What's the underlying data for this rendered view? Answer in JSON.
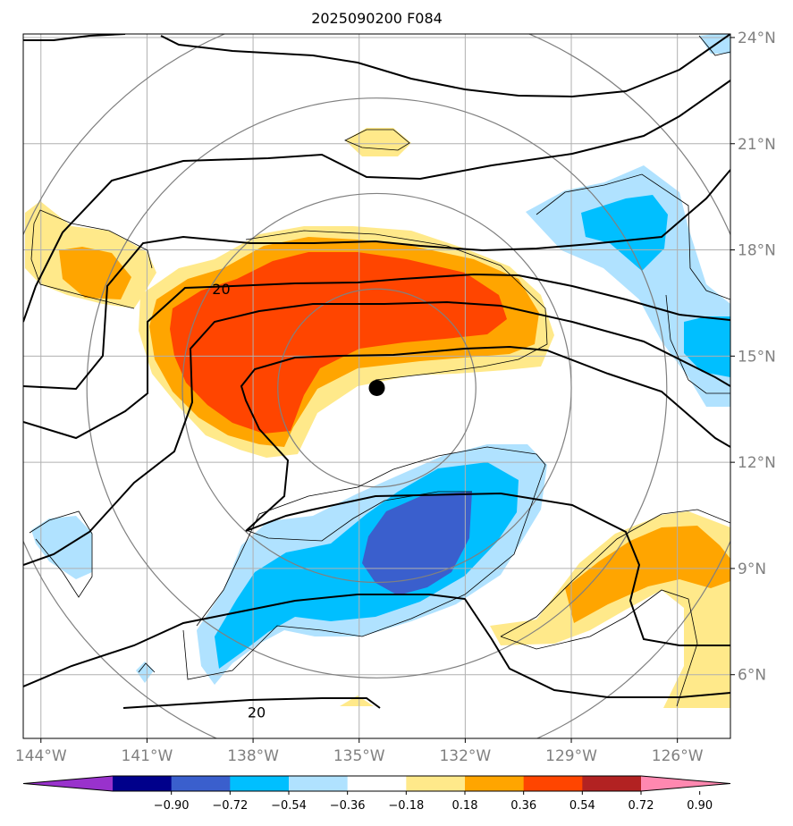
{
  "chart_data": {
    "type": "heatmap",
    "title": "2025090200 F084",
    "xlim": [
      -144.5,
      -124.5
    ],
    "ylim": [
      4.2,
      24.1
    ],
    "x_ticks": [
      {
        "value": -144,
        "label": "144°W"
      },
      {
        "value": -141,
        "label": "141°W"
      },
      {
        "value": -138,
        "label": "138°W"
      },
      {
        "value": -135,
        "label": "135°W"
      },
      {
        "value": -132,
        "label": "132°W"
      },
      {
        "value": -129,
        "label": "129°W"
      },
      {
        "value": -126,
        "label": "126°W"
      }
    ],
    "y_ticks": [
      {
        "value": 6,
        "label": "6°N"
      },
      {
        "value": 9,
        "label": "9°N"
      },
      {
        "value": 12,
        "label": "12°N"
      },
      {
        "value": 15,
        "label": "15°N"
      },
      {
        "value": 18,
        "label": "18°N"
      },
      {
        "value": 21,
        "label": "21°N"
      },
      {
        "value": 24,
        "label": "24°N"
      }
    ],
    "grid": true,
    "center_marker": {
      "lon": -134.5,
      "lat": 14.1
    },
    "range_rings_deg": [
      2.8,
      5.5,
      8.2,
      10.9
    ],
    "colorbar": {
      "orientation": "horizontal",
      "placement": "bottom",
      "extend": "both",
      "levels": [
        "−0.90",
        "−0.72",
        "−0.54",
        "−0.36",
        "−0.18",
        "0.18",
        "0.36",
        "0.54",
        "0.72",
        "0.90"
      ],
      "colors": [
        "#9932cc",
        "#00008b",
        "#3a5fcd",
        "#00bfff",
        "#b0e2ff",
        "#ffffff",
        "#ffe98a",
        "#ffa500",
        "#ff4500",
        "#b22222",
        "#ff88b0"
      ]
    },
    "contour_labels": [
      {
        "text": "20",
        "lon": -138.9,
        "lat": 16.9
      },
      {
        "text": "20",
        "lon": -137.9,
        "lat": 4.95
      }
    ]
  }
}
